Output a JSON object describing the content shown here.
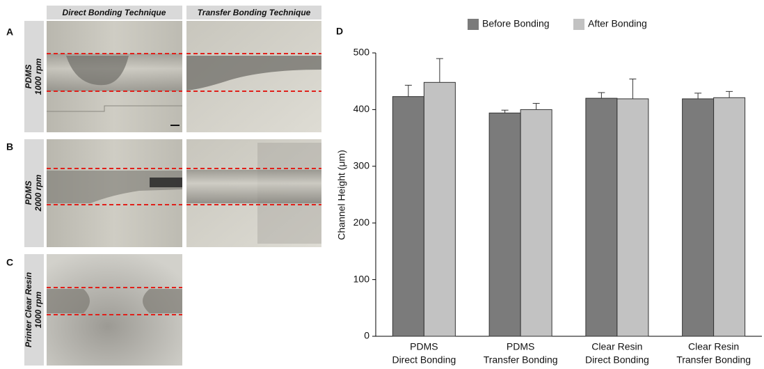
{
  "figure": {
    "column_headers": [
      "Direct Bonding Technique",
      "Transfer Bonding Technique"
    ],
    "rows": [
      {
        "letter": "A",
        "material": "PDMS",
        "speed": "1000 rpm"
      },
      {
        "letter": "B",
        "material": "PDMS",
        "speed": "2000 rpm"
      },
      {
        "letter": "C",
        "material": "Printer Clear Resin",
        "speed": "1000 rpm"
      }
    ],
    "chart_letter": "D"
  },
  "chart_data": {
    "type": "bar",
    "y_label": "Channel Height (μm)",
    "categories": [
      [
        "PDMS",
        "Direct Bonding"
      ],
      [
        "PDMS",
        "Transfer Bonding"
      ],
      [
        "Clear Resin",
        "Direct Bonding"
      ],
      [
        "Clear Resin",
        "Transfer Bonding"
      ]
    ],
    "series": [
      {
        "name": "Before Bonding",
        "color": "#7b7b7b",
        "values": [
          423,
          394,
          420,
          419
        ],
        "errors": [
          20,
          5,
          10,
          10
        ]
      },
      {
        "name": "After Bonding",
        "color": "#c2c2c2",
        "values": [
          448,
          400,
          419,
          421
        ],
        "errors": [
          42,
          11,
          35,
          11
        ]
      }
    ],
    "ylim": [
      0,
      500
    ],
    "yticks": [
      0,
      100,
      200,
      300,
      400,
      500
    ]
  }
}
